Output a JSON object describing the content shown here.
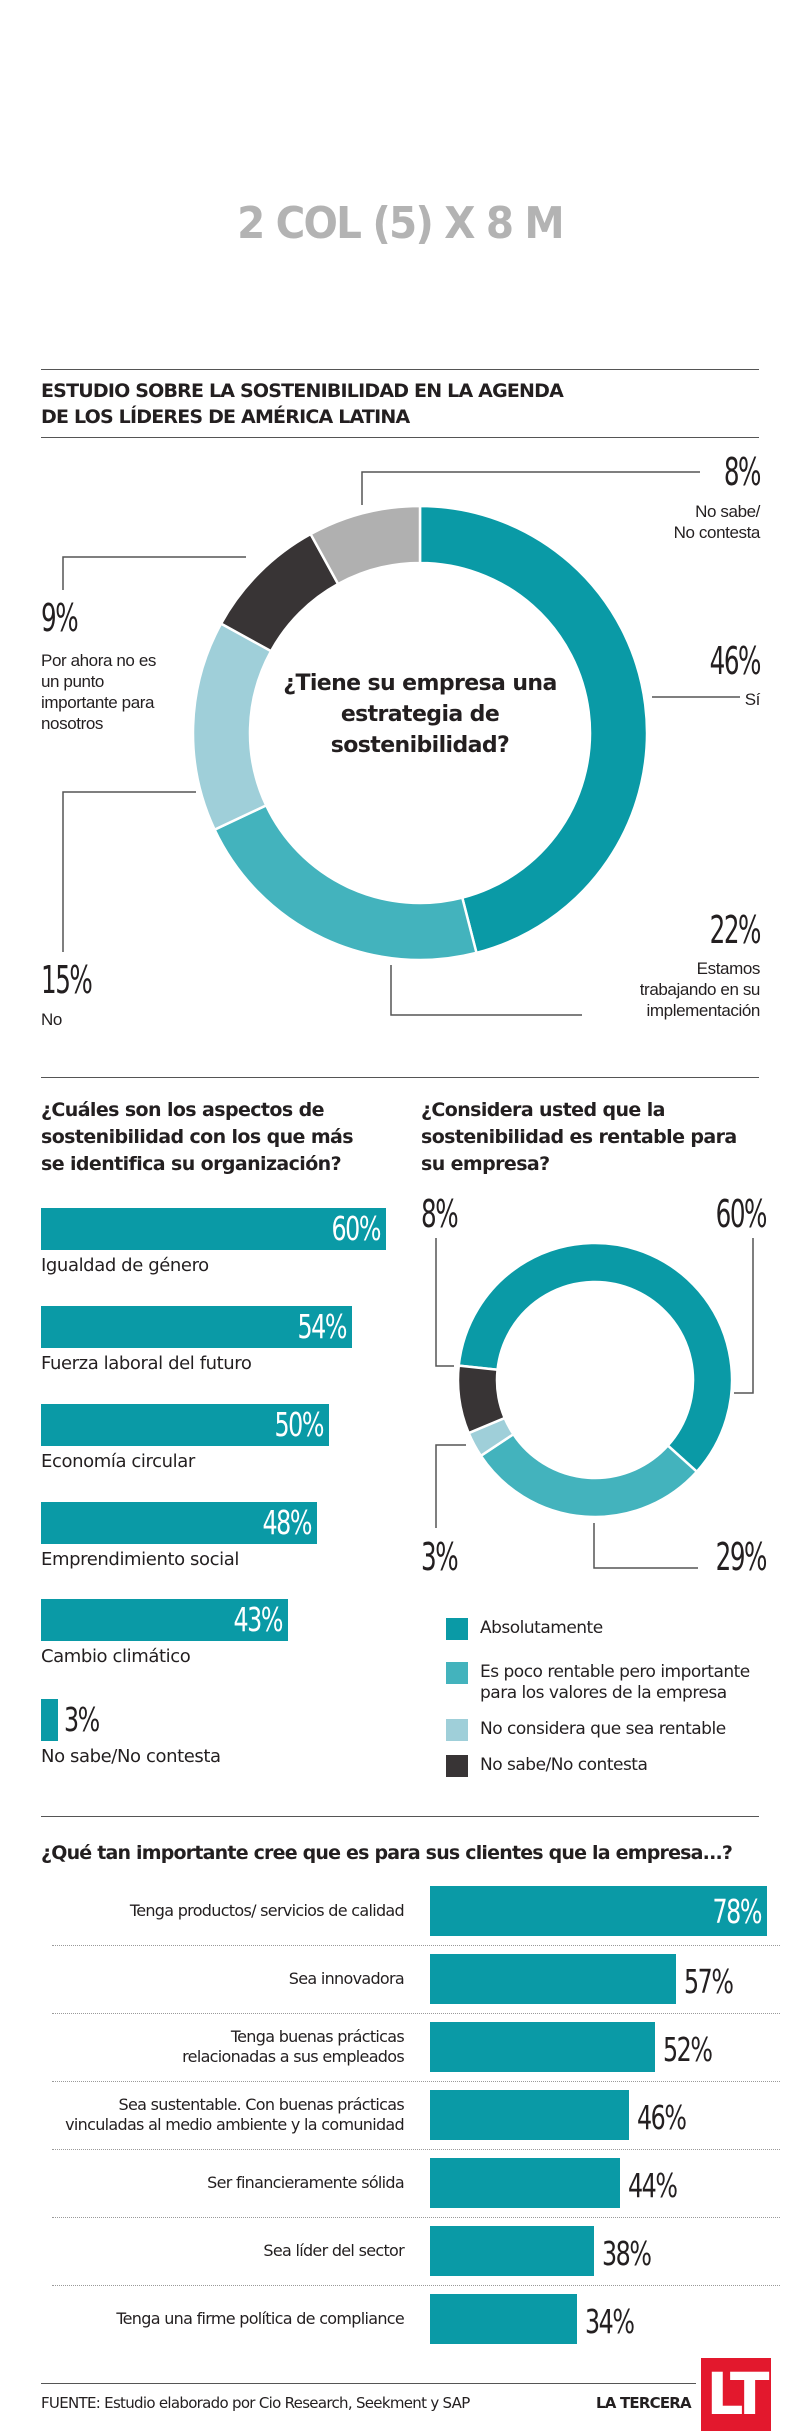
{
  "header": {
    "placeholder_title": "2 COL (5) X 8 M",
    "main_title_line1": "ESTUDIO SOBRE LA SOSTENIBILIDAD EN LA AGENDA",
    "main_title_line2": "DE LOS LÍDERES DE AMÉRICA LATINA"
  },
  "colors": {
    "teal_dark": "#0a9aa6",
    "teal_mid": "#43b3bd",
    "teal_light": "#9fcfd9",
    "charcoal": "#383435",
    "gray": "#b0b0b0",
    "text": "#231f20",
    "logo_red": "#e3182d"
  },
  "chart_data": [
    {
      "type": "pie",
      "title": "¿Tiene su empresa una estrategia de sostenibilidad?",
      "title_lines": [
        "¿Tiene su empresa una",
        "estrategia de",
        "sostenibilidad?"
      ],
      "slices": [
        {
          "label": "Sí",
          "value": 46,
          "value_label": "46%",
          "color": "#0a9aa6"
        },
        {
          "label": "Estamos trabajando en su implementación",
          "label_lines": [
            "Estamos",
            "trabajando en su",
            "implementación"
          ],
          "value": 22,
          "value_label": "22%",
          "color": "#43b3bd"
        },
        {
          "label": "No",
          "value": 15,
          "value_label": "15%",
          "color": "#9fcfd9"
        },
        {
          "label": "Por ahora no es un punto importante para nosotros",
          "label_lines": [
            "Por ahora no es",
            "un punto",
            "importante para",
            "nosotros"
          ],
          "value": 9,
          "value_label": "9%",
          "color": "#383435"
        },
        {
          "label": "No sabe/ No contesta",
          "label_lines": [
            "No sabe/",
            "No contesta"
          ],
          "value": 8,
          "value_label": "8%",
          "color": "#b0b0b0"
        }
      ]
    },
    {
      "type": "bar",
      "orientation": "horizontal",
      "title": "¿Cuáles son los aspectos de sostenibilidad con los que más se identifica su organización?",
      "title_lines": [
        "¿Cuáles son los aspectos de",
        "sostenibilidad con los que más",
        "se identifica su organización?"
      ],
      "categories": [
        "Igualdad de género",
        "Fuerza laboral del futuro",
        "Economía circular",
        "Emprendimiento social",
        "Cambio climático",
        "No sabe/No contesta"
      ],
      "values": [
        60,
        54,
        50,
        48,
        43,
        3
      ],
      "value_labels": [
        "60%",
        "54%",
        "50%",
        "48%",
        "43%",
        "3%"
      ],
      "xlim": [
        0,
        60
      ]
    },
    {
      "type": "pie",
      "title": "¿Considera usted que la sostenibilidad es rentable para su empresa?",
      "title_lines": [
        "¿Considera usted que la",
        "sostenibilidad es rentable para",
        "su empresa?"
      ],
      "slices": [
        {
          "label": "Absolutamente",
          "value": 60,
          "value_label": "60%",
          "color": "#0a9aa6"
        },
        {
          "label": "Es poco rentable pero importante para los valores de la empresa",
          "label_lines": [
            "Es poco rentable pero importante",
            "para los valores de la empresa"
          ],
          "value": 29,
          "value_label": "29%",
          "color": "#43b3bd"
        },
        {
          "label": "No considera que sea rentable",
          "value": 3,
          "value_label": "3%",
          "color": "#9fcfd9"
        },
        {
          "label": "No sabe/No contesta",
          "value": 8,
          "value_label": "8%",
          "color": "#383435"
        }
      ],
      "legend": "below"
    },
    {
      "type": "bar",
      "orientation": "horizontal",
      "title": "¿Qué tan importante cree que es para sus clientes que la empresa...?",
      "categories": [
        "Tenga productos/ servicios de calidad",
        "Sea innovadora",
        "Tenga buenas prácticas relacionadas a sus empleados",
        "Sea sustentable. Con buenas prácticas vinculadas al medio ambiente y la comunidad",
        "Ser financieramente sólida",
        "Sea líder del sector",
        "Tenga una firme política de compliance"
      ],
      "category_lines": [
        [
          "Tenga productos/ servicios de calidad"
        ],
        [
          "Sea innovadora"
        ],
        [
          "Tenga buenas prácticas",
          "relacionadas a sus empleados"
        ],
        [
          "Sea sustentable. Con buenas prácticas",
          "vinculadas al medio ambiente y la comunidad"
        ],
        [
          "Ser financieramente sólida"
        ],
        [
          "Sea líder del sector"
        ],
        [
          "Tenga una firme política de compliance"
        ]
      ],
      "values": [
        78,
        57,
        52,
        46,
        44,
        38,
        34
      ],
      "value_labels": [
        "78%",
        "57%",
        "52%",
        "46%",
        "44%",
        "38%",
        "34%"
      ],
      "xlim": [
        0,
        78
      ]
    }
  ],
  "footer": {
    "source": "FUENTE: Estudio elaborado por Cio Research, Seekment y SAP",
    "brand": "LA TERCERA",
    "logo_text": "LT"
  }
}
